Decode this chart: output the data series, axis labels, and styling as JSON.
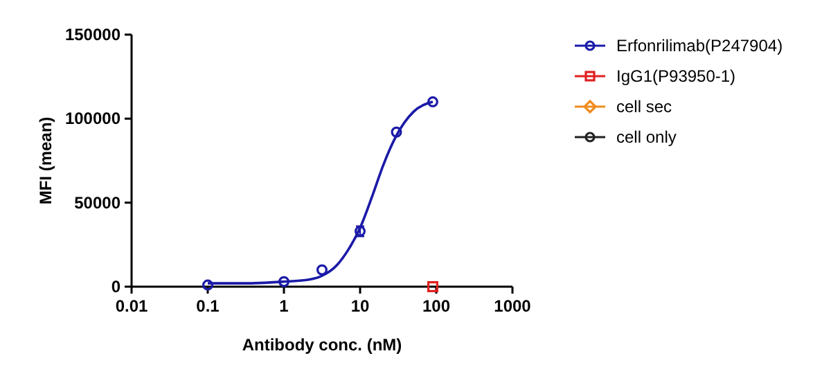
{
  "chart_data": {
    "type": "scatter",
    "xlabel": "Antibody conc. (nM)",
    "ylabel": "MFI (mean)",
    "log": "x",
    "xlim": [
      0.01,
      1000
    ],
    "xticks": [
      0.01,
      0.1,
      1,
      10,
      100,
      1000
    ],
    "ylim": [
      0,
      150000
    ],
    "yticks": [
      0,
      50000,
      100000,
      150000
    ],
    "grid": false,
    "legend": "right",
    "series": [
      {
        "type": "line",
        "color": "#1a1aa8",
        "marker": "none",
        "x": [
          0.1,
          0.3,
          1,
          2,
          3,
          5,
          7,
          10,
          15,
          20,
          30,
          50,
          90
        ],
        "values": [
          2000,
          2000,
          3000,
          4000,
          6000,
          13000,
          22000,
          35000,
          56000,
          72000,
          90000,
          104000,
          110000
        ]
      },
      {
        "name": "Erfonrilimab(P247904)",
        "color": "#1a1aa8",
        "marker": "circle",
        "x": [
          0.1,
          1,
          3.16,
          10,
          30,
          90
        ],
        "values": [
          1000,
          3000,
          10000,
          33000,
          92000,
          110000
        ],
        "errors": [
          null,
          null,
          null,
          3000,
          null,
          null
        ]
      },
      {
        "name": "IgG1(P93950-1)",
        "color": "#e02020",
        "marker": "square",
        "x": [
          90
        ],
        "values": [
          0
        ]
      },
      {
        "name": "cell sec",
        "color": "#f08c1e",
        "marker": "diamond"
      },
      {
        "name": "cell only",
        "color": "#222222",
        "marker": "circle"
      }
    ]
  }
}
